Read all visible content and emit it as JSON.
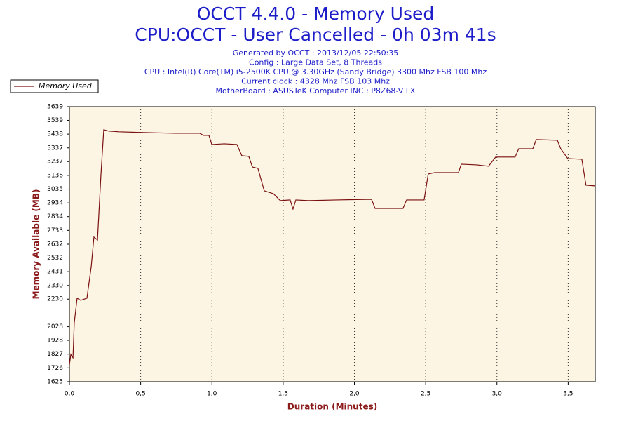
{
  "chart_data": {
    "type": "line",
    "title": "OCCT 4.4.0 - Memory Used",
    "subtitle": "CPU:OCCT - User Cancelled - 0h 03m 41s",
    "info": [
      "Generated by OCCT : 2013/12/05 22:50:35",
      "Config : Large Data Set, 8 Threads",
      "CPU : Intel(R) Core(TM) i5-2500K CPU @ 3.30GHz (Sandy Bridge) 3300 Mhz FSB 100 Mhz",
      "Current clock : 4328 Mhz FSB 103 Mhz",
      "MotherBoard : ASUSTeK Computer INC.: P8Z68-V LX"
    ],
    "x_label": "Duration (Minutes)",
    "y_label": "Memory Available (MB)",
    "x": [
      0,
      0.01,
      0.025,
      0.034,
      0.054,
      0.079,
      0.123,
      0.153,
      0.172,
      0.197,
      0.221,
      0.241,
      0.275,
      0.349,
      0.497,
      0.743,
      0.915,
      0.94,
      0.979,
      0.999,
      1.087,
      1.175,
      1.21,
      1.259,
      1.284,
      1.323,
      1.367,
      1.431,
      1.48,
      1.549,
      1.569,
      1.589,
      1.677,
      1.874,
      2.12,
      2.145,
      2.341,
      2.366,
      2.489,
      2.518,
      2.563,
      2.73,
      2.75,
      2.858,
      2.941,
      2.991,
      3.128,
      3.153,
      3.252,
      3.276,
      3.424,
      3.448,
      3.497,
      3.596,
      3.625,
      3.689
    ],
    "series": [
      {
        "name": "Memory Used",
        "color": "#7a1010",
        "values": [
          1748,
          1825,
          1800,
          2057,
          2237,
          2221,
          2237,
          2468,
          2684,
          2663,
          3136,
          3470,
          3460,
          3455,
          3450,
          3444,
          3444,
          3429,
          3429,
          3362,
          3367,
          3362,
          3280,
          3275,
          3197,
          3187,
          3023,
          3002,
          2951,
          2956,
          2889,
          2956,
          2951,
          2956,
          2961,
          2894,
          2894,
          2956,
          2956,
          3146,
          3156,
          3156,
          3218,
          3213,
          3203,
          3270,
          3270,
          3331,
          3331,
          3398,
          3393,
          3331,
          3259,
          3254,
          3064,
          3059
        ]
      }
    ],
    "xlim": [
      0,
      3.69
    ],
    "xticks": [
      {
        "value": 0,
        "label": "0,0"
      },
      {
        "value": 0.5,
        "label": "0,5"
      },
      {
        "value": 1,
        "label": "1,0"
      },
      {
        "value": 1.5,
        "label": "1,5"
      },
      {
        "value": 2,
        "label": "2,0"
      },
      {
        "value": 2.5,
        "label": "2,5"
      },
      {
        "value": 3,
        "label": "3,0"
      },
      {
        "value": 3.5,
        "label": "3,5"
      }
    ],
    "ylim": [
      1625,
      3639
    ],
    "yticks": [
      1625,
      1726,
      1827,
      1928,
      2028,
      2230,
      2330,
      2431,
      2532,
      2632,
      2733,
      2834,
      2934,
      3035,
      3136,
      3237,
      3337,
      3438,
      3539,
      3639
    ],
    "grid": true,
    "legend": "top-left"
  }
}
